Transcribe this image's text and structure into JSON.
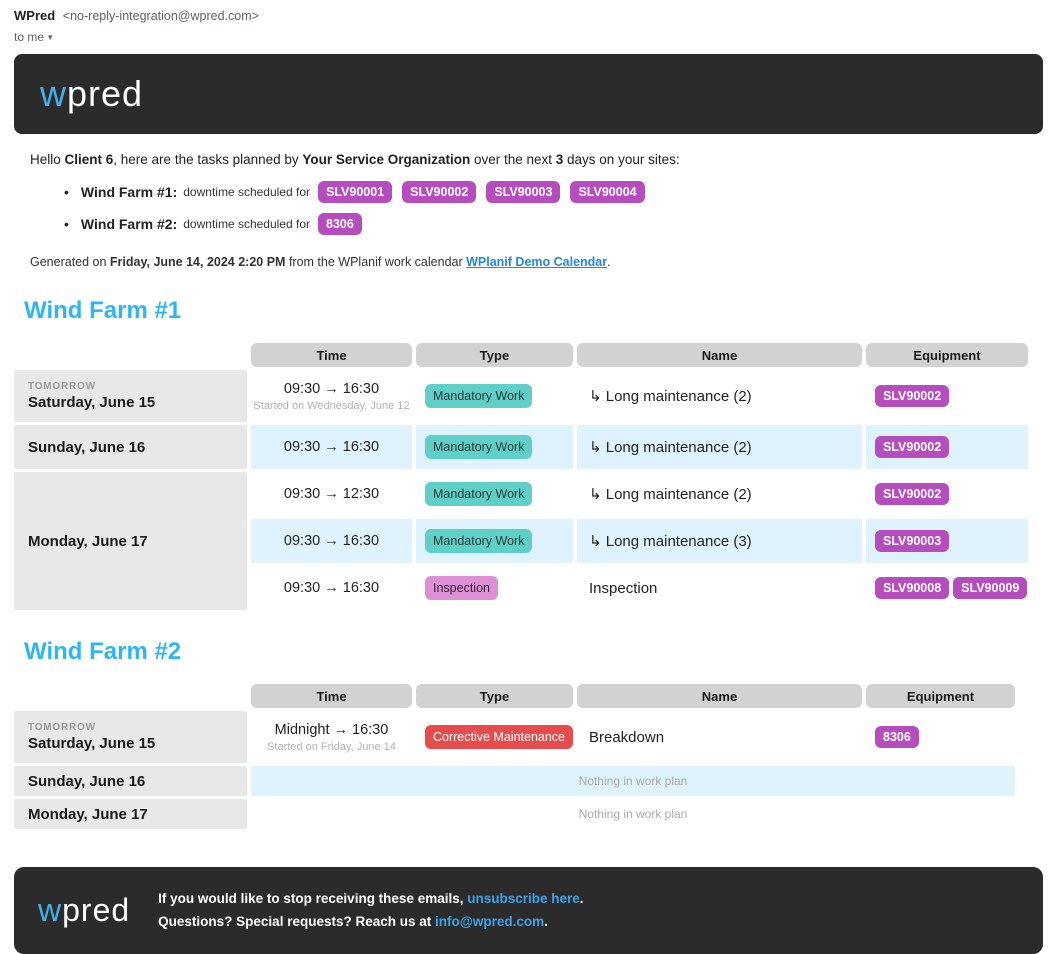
{
  "email_client": {
    "sender_name": "WPred",
    "sender_email": "<no-reply-integration@wpred.com>",
    "recipient_label": "to me",
    "caret": "▾"
  },
  "brand": {
    "logo_w": "w",
    "logo_rest": "pred"
  },
  "intro": {
    "greeting_prefix": "Hello ",
    "client_name": "Client 6",
    "after_client": ", here are the tasks planned by ",
    "org_name": "Your Service Organization",
    "after_org": " over the next ",
    "days": "3",
    "suffix": " days on your sites:"
  },
  "summary": [
    {
      "site": "Wind Farm #1",
      "colon": ":",
      "label": "downtime scheduled for",
      "equipment": [
        "SLV90001",
        "SLV90002",
        "SLV90003",
        "SLV90004"
      ]
    },
    {
      "site": "Wind Farm #2",
      "colon": ":",
      "label": "downtime scheduled for",
      "equipment": [
        "8306"
      ]
    }
  ],
  "generated": {
    "prefix": "Generated on ",
    "datetime": "Friday, June 14, 2024 2:20 PM",
    "middle": " from the WPlanif work calendar ",
    "link": "WPlanif Demo Calendar",
    "suffix": "."
  },
  "tables": [
    {
      "title": "Wind Farm #1",
      "headers": [
        "Time",
        "Type",
        "Name",
        "Equipment"
      ],
      "groups": [
        {
          "tag": "TOMORROW",
          "date": "Saturday, June 15",
          "rows": [
            {
              "time": "09:30 → 16:30",
              "time_note": "Started on Wednesday, June 12",
              "type": "Mandatory Work",
              "type_color": "teal",
              "name": "↳ Long maintenance (2)",
              "equipment": [
                "SLV90002"
              ]
            }
          ]
        },
        {
          "date": "Sunday, June 16",
          "rows": [
            {
              "time": "09:30 → 16:30",
              "type": "Mandatory Work",
              "type_color": "teal",
              "name": "↳ Long maintenance (2)",
              "equipment": [
                "SLV90002"
              ]
            }
          ]
        },
        {
          "date": "Monday, June 17",
          "rows": [
            {
              "time": "09:30 → 12:30",
              "type": "Mandatory Work",
              "type_color": "teal",
              "name": "↳ Long maintenance (2)",
              "equipment": [
                "SLV90002"
              ]
            },
            {
              "time": "09:30 → 16:30",
              "type": "Mandatory Work",
              "type_color": "teal",
              "name": "↳ Long maintenance (3)",
              "equipment": [
                "SLV90003"
              ]
            },
            {
              "time": "09:30 → 16:30",
              "type": "Inspection",
              "type_color": "pink",
              "name": "Inspection",
              "equipment": [
                "SLV90008",
                "SLV90009"
              ]
            }
          ]
        }
      ]
    },
    {
      "title": "Wind Farm #2",
      "headers": [
        "Time",
        "Type",
        "Name",
        "Equipment"
      ],
      "groups": [
        {
          "tag": "TOMORROW",
          "date": "Saturday, June 15",
          "rows": [
            {
              "time": "Midnight → 16:30",
              "time_note": "Started on Friday, June 14",
              "type": "Corrective Maintenance",
              "type_color": "red",
              "name": "Breakdown",
              "equipment": [
                "8306"
              ]
            }
          ]
        },
        {
          "date": "Sunday, June 16",
          "rows": [
            {
              "empty": "Nothing in work plan"
            }
          ]
        },
        {
          "date": "Monday, June 17",
          "rows": [
            {
              "empty": "Nothing in work plan"
            }
          ]
        }
      ]
    }
  ],
  "footer": {
    "line1_prefix": "If you would like to stop receiving these emails, ",
    "line1_link": "unsubscribe here",
    "line1_suffix": ".",
    "line2_prefix": "Questions? Special requests? Reach us at ",
    "line2_link": "info@wpred.com",
    "line2_suffix": "."
  },
  "colors": {
    "brand_dark": "#2b2b2b",
    "logo_blue": "#41b0e8",
    "heading_blue": "#2db6f5",
    "equipment_badge": "#b54dbe",
    "type_teal": "#5ed0c8",
    "type_pink": "#df8fd3",
    "type_red": "#e74c4c",
    "row_blue": "#def3fd",
    "date_cell_gray": "#e8e8e8",
    "header_cell_gray": "#d2d2d2",
    "link_blue": "#1e88e5",
    "footer_link_blue": "#3ba3e8"
  }
}
